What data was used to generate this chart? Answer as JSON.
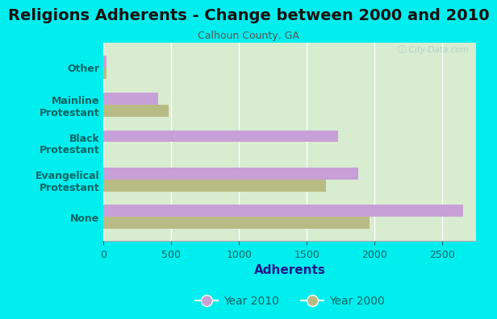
{
  "title": "Religions Adherents - Change between 2000 and 2010",
  "subtitle": "Calhoun County, GA",
  "xlabel": "Adherents",
  "categories": [
    "None",
    "Evangelical\nProtestant",
    "Black\nProtestant",
    "Mainline\nProtestant",
    "Other"
  ],
  "values_2010": [
    2650,
    1880,
    1730,
    400,
    20
  ],
  "values_2000": [
    1960,
    1640,
    0,
    480,
    20
  ],
  "color_2010": "#c8a0d8",
  "color_2000": "#b8bc84",
  "background_color": "#00eeee",
  "plot_bg_left": "#d8ecd0",
  "plot_bg_right": "#f0faf5",
  "xlim": [
    0,
    2750
  ],
  "bar_height": 0.32,
  "title_fontsize": 14,
  "subtitle_fontsize": 9,
  "xlabel_fontsize": 11,
  "tick_fontsize": 9,
  "label_color": "#006666",
  "xlabel_color": "#1a1a8c"
}
